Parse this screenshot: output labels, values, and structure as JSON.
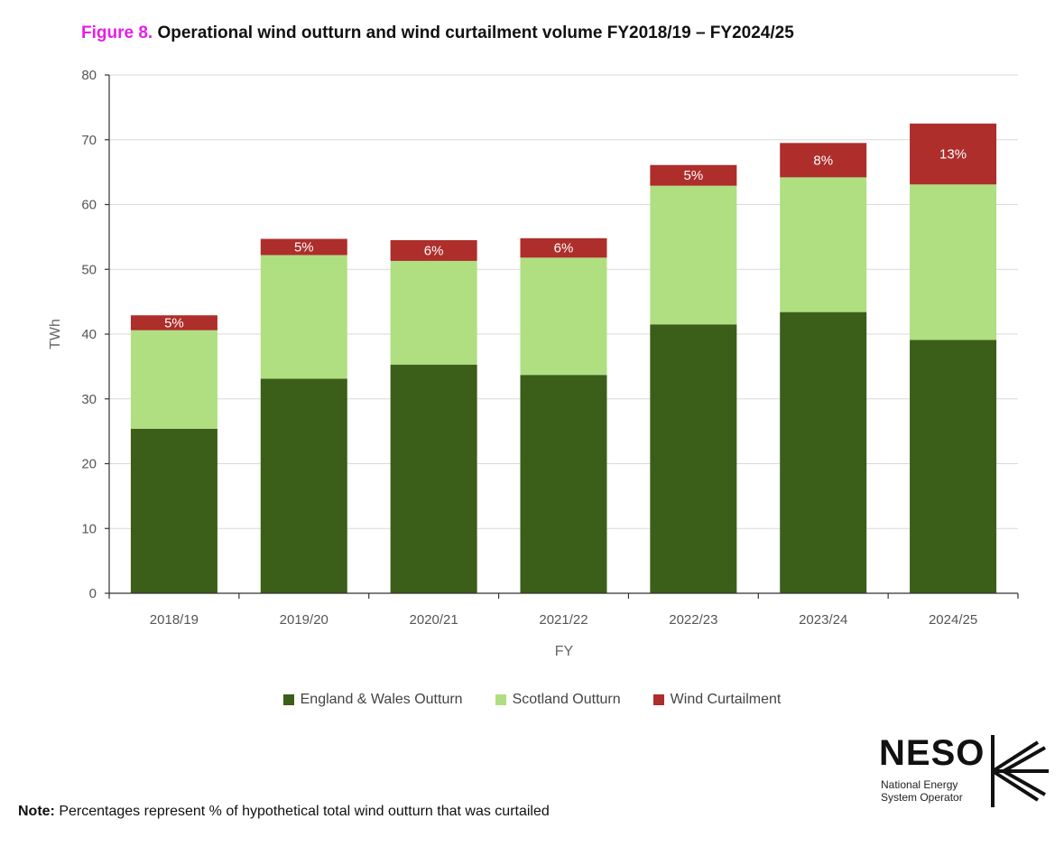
{
  "title": {
    "figure_label": "Figure 8.",
    "text": "Operational wind outturn and wind curtailment volume FY2018/19 – FY2024/25"
  },
  "chart_data": {
    "type": "bar",
    "stacked": true,
    "categories": [
      "2018/19",
      "2019/20",
      "2020/21",
      "2021/22",
      "2022/23",
      "2023/24",
      "2024/25"
    ],
    "series": [
      {
        "name": "England & Wales Outturn",
        "color": "#3b5e18",
        "values": [
          25.4,
          33.1,
          35.3,
          33.7,
          41.5,
          43.4,
          39.1
        ]
      },
      {
        "name": "Scotland Outturn",
        "color": "#afdf80",
        "values": [
          15.2,
          19.1,
          16.0,
          18.1,
          21.4,
          20.8,
          24.0
        ]
      },
      {
        "name": "Wind Curtailment",
        "color": "#ad2e2b",
        "values": [
          2.3,
          2.5,
          3.2,
          3.0,
          3.2,
          5.3,
          9.4
        ]
      }
    ],
    "data_labels": [
      "5%",
      "5%",
      "6%",
      "6%",
      "5%",
      "8%",
      "13%"
    ],
    "xlabel": "FY",
    "ylabel": "TWh",
    "ylim": [
      0,
      80
    ],
    "yticks": [
      0,
      10,
      20,
      30,
      40,
      50,
      60,
      70,
      80
    ],
    "grid": true,
    "legend": "bottom"
  },
  "note": {
    "label": "Note:",
    "text": "Percentages represent % of hypothetical total wind outturn that was curtailed"
  },
  "logo": {
    "word": "NESO",
    "line1": "National Energy",
    "line2": "System Operator"
  }
}
